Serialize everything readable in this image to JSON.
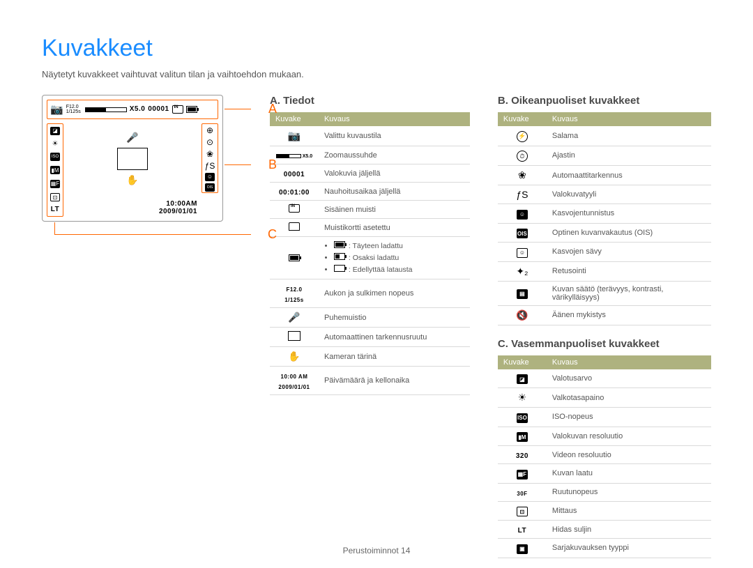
{
  "page": {
    "title": "Kuvakkeet",
    "subtitle": "Näytetyt kuvakkeet vaihtuvat valitun tilan ja vaihtoehdon mukaan.",
    "footer_section": "Perustoiminnot",
    "footer_page": "14"
  },
  "colors": {
    "title": "#1a8cff",
    "accent": "#ff6600",
    "table_header_bg": "#aeb27f",
    "table_header_fg": "#ffffff",
    "border": "#d9d9d9",
    "text": "#4a4a4a"
  },
  "lcd": {
    "labels": {
      "a": "A",
      "b": "B",
      "c": "C"
    },
    "top": {
      "mode_icon": "📷",
      "aperture": "F12.0",
      "shutter": "1/125s",
      "zoom": "X5.0",
      "shots": "00001"
    },
    "right_icons": [
      "⊕",
      "⊙",
      "❀",
      "ƒS",
      "☺",
      "OIS"
    ],
    "left_icons": [
      "◪",
      "☀",
      "ISO",
      "▮M",
      "▦F",
      "⊡",
      "LT"
    ],
    "center": {
      "mic": "🎤",
      "shake": "✋"
    },
    "bottom": {
      "time": "10:00AM",
      "date": "2009/01/01"
    }
  },
  "sections": {
    "a": {
      "title": "A. Tiedot",
      "header_icon": "Kuvake",
      "header_desc": "Kuvaus",
      "rows": [
        {
          "icon_type": "camera",
          "desc": "Valittu kuvaustila"
        },
        {
          "icon_type": "zoom",
          "desc": "Zoomaussuhde"
        },
        {
          "icon_type": "text",
          "icon_text": "00001",
          "desc": "Valokuvia jäljellä"
        },
        {
          "icon_type": "text",
          "icon_text": "00:01:00",
          "desc": "Nauhoitusaikaa jäljellä"
        },
        {
          "icon_type": "mem",
          "desc": "Sisäinen muisti"
        },
        {
          "icon_type": "sd",
          "desc": "Muistikortti asetettu"
        },
        {
          "icon_type": "battery",
          "desc_list": [
            {
              "level": "full",
              "text": ": Täyteen ladattu"
            },
            {
              "level": "half",
              "text": ": Osaksi ladattu"
            },
            {
              "level": "low",
              "text": ": Edellyttää latausta"
            }
          ]
        },
        {
          "icon_type": "text2",
          "icon_text1": "F12.0",
          "icon_text2": "1/125s",
          "desc": "Aukon ja sulkimen nopeus"
        },
        {
          "icon_type": "glyph",
          "icon_text": "🎤",
          "desc": "Puhemuistio"
        },
        {
          "icon_type": "focus",
          "desc": "Automaattinen tarkennusruutu"
        },
        {
          "icon_type": "glyph",
          "icon_text": "✋",
          "desc": "Kameran tärinä"
        },
        {
          "icon_type": "text2",
          "icon_text1": "10:00 AM",
          "icon_text2": "2009/01/01",
          "desc": "Päivämäärä ja kellonaika"
        }
      ]
    },
    "b": {
      "title": "B. Oikeanpuoliset kuvakkeet",
      "header_icon": "Kuvake",
      "header_desc": "Kuvaus",
      "rows": [
        {
          "icon": "⚡",
          "style": "circle",
          "desc": "Salama"
        },
        {
          "icon": "⏱",
          "style": "circle",
          "desc": "Ajastin"
        },
        {
          "icon": "❀",
          "desc": "Automaattitarkennus"
        },
        {
          "icon": "ƒS",
          "desc": "Valokuvatyyli"
        },
        {
          "icon": "☺",
          "style": "sq",
          "desc": "Kasvojentunnistus"
        },
        {
          "icon": "OIS",
          "style": "sq",
          "desc": "Optinen kuvanvakautus (OIS)"
        },
        {
          "icon": "☺",
          "style": "sq-inv",
          "desc": "Kasvojen sävy"
        },
        {
          "icon": "✦₂",
          "desc": "Retusointi"
        },
        {
          "icon": "▤",
          "style": "sq",
          "desc": "Kuvan säätö (terävyys, kontrasti, värikylläisyys)"
        },
        {
          "icon": "🔇",
          "desc": "Äänen mykistys"
        }
      ]
    },
    "c": {
      "title": "C. Vasemmanpuoliset kuvakkeet",
      "header_icon": "Kuvake",
      "header_desc": "Kuvaus",
      "rows": [
        {
          "icon": "◪",
          "style": "sq",
          "desc": "Valotusarvo"
        },
        {
          "icon": "☀",
          "desc": "Valkotasapaino"
        },
        {
          "icon": "ISO",
          "style": "sq",
          "desc": "ISO-nopeus"
        },
        {
          "icon": "▮M",
          "style": "sq",
          "desc": "Valokuvan resoluutio"
        },
        {
          "icon": "320",
          "style": "text",
          "desc": "Videon resoluutio"
        },
        {
          "icon": "▦F",
          "style": "sq",
          "desc": "Kuvan laatu"
        },
        {
          "icon": "30F",
          "style": "text-sm",
          "desc": "Ruutunopeus"
        },
        {
          "icon": "⊡",
          "style": "sq-inv",
          "desc": "Mittaus"
        },
        {
          "icon": "LT",
          "style": "text",
          "desc": "Hidas suljin"
        },
        {
          "icon": "▣",
          "style": "sq",
          "desc": "Sarjakuvauksen tyyppi"
        }
      ]
    }
  }
}
